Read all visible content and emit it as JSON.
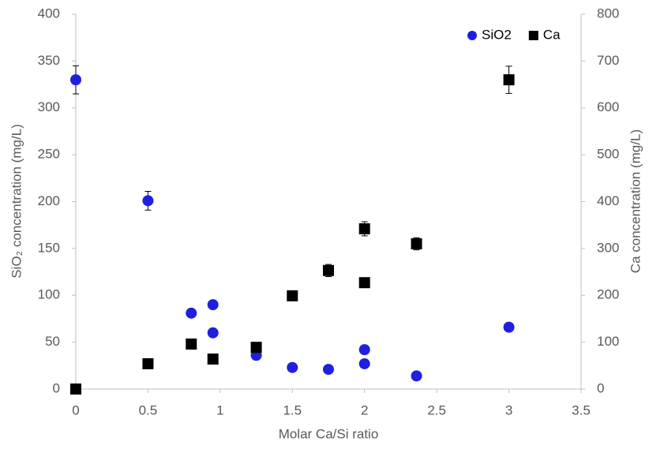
{
  "chart_data": {
    "type": "scatter",
    "xlabel": "Molar Ca/Si ratio",
    "ylabel": "SiO₂ concentration (mg/L)",
    "y2label": "Ca concentration (mg/L)",
    "xlim": [
      0,
      3.5
    ],
    "xticks": [
      0,
      0.5,
      1,
      1.5,
      2,
      2.5,
      3,
      3.5
    ],
    "ylim": [
      0,
      400
    ],
    "yticks": [
      0,
      50,
      100,
      150,
      200,
      250,
      300,
      350,
      400
    ],
    "y2lim": [
      0,
      800
    ],
    "y2ticks": [
      0,
      100,
      200,
      300,
      400,
      500,
      600,
      700,
      800
    ],
    "grid": false,
    "legend": "upper right",
    "series": [
      {
        "name": "SiO2",
        "color": "#1f1fe0",
        "marker": "circle",
        "x": [
          0,
          0.5,
          0.8,
          0.95,
          0.95,
          1.25,
          1.5,
          1.75,
          2,
          2,
          2.36,
          3
        ],
        "values": [
          330,
          201,
          81,
          90,
          60,
          36,
          23,
          21,
          42,
          27,
          14,
          66
        ],
        "errors": [
          15,
          10,
          null,
          null,
          null,
          null,
          null,
          null,
          null,
          null,
          null,
          null
        ]
      },
      {
        "name": "Ca",
        "color": "#000000",
        "marker": "square",
        "axis": "y2",
        "x": [
          0,
          0.5,
          0.8,
          0.95,
          1.25,
          1.5,
          1.75,
          2,
          2,
          2.36,
          3
        ],
        "values": [
          0,
          54,
          96,
          64,
          89,
          199,
          253,
          342,
          227,
          310,
          660
        ],
        "errors": [
          null,
          null,
          null,
          null,
          null,
          8,
          13,
          15,
          7,
          13,
          29
        ]
      }
    ]
  }
}
